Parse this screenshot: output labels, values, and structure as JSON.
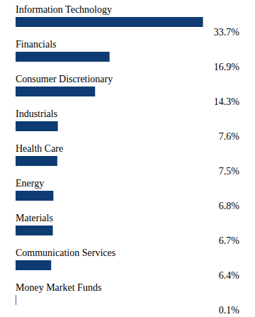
{
  "chart_data": {
    "type": "bar",
    "orientation": "horizontal",
    "categories": [
      "Information Technology",
      "Financials",
      "Consumer Discretionary",
      "Industrials",
      "Health Care",
      "Energy",
      "Materials",
      "Communication Services",
      "Money Market Funds"
    ],
    "values": [
      33.7,
      16.9,
      14.3,
      7.6,
      7.5,
      6.8,
      6.7,
      6.4,
      0.1
    ],
    "value_labels": [
      "33.7%",
      "16.9%",
      "14.3%",
      "7.6%",
      "7.5%",
      "6.8%",
      "6.7%",
      "6.4%",
      "0.1%"
    ],
    "color": "#0d3b72",
    "xlim": [
      0,
      40
    ],
    "tick_labels": false,
    "data_labels": true,
    "grid": false
  }
}
